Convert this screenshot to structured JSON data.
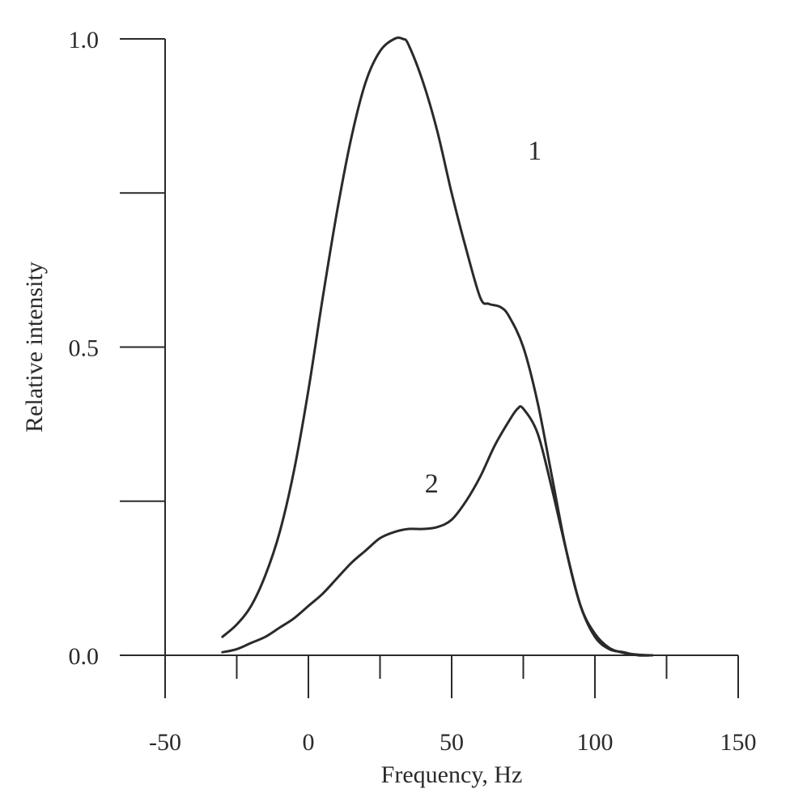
{
  "chart_data": {
    "type": "line",
    "xlabel": "Frequency, Hz",
    "ylabel": "Relative intensity",
    "xlim": [
      -50,
      150
    ],
    "ylim": [
      0.0,
      1.0
    ],
    "x_ticks": [
      -50,
      -25,
      0,
      25,
      50,
      75,
      100,
      125,
      150
    ],
    "x_tick_labels": [
      "-50",
      "0",
      "50",
      "100",
      "150"
    ],
    "y_ticks": [
      0.0,
      0.25,
      0.5,
      0.75,
      1.0
    ],
    "y_tick_labels": [
      "0.0",
      "0.5",
      "1.0"
    ],
    "grid": false,
    "series": [
      {
        "name": "1",
        "x": [
          -30,
          -25,
          -20,
          -15,
          -10,
          -5,
          0,
          5,
          10,
          15,
          20,
          25,
          30,
          33,
          35,
          40,
          45,
          50,
          55,
          60,
          63,
          67,
          70,
          75,
          80,
          85,
          90,
          95,
          100,
          105,
          110,
          115,
          120
        ],
        "y": [
          0.03,
          0.05,
          0.08,
          0.13,
          0.2,
          0.3,
          0.43,
          0.58,
          0.72,
          0.84,
          0.93,
          0.98,
          1.0,
          1.0,
          0.99,
          0.93,
          0.85,
          0.75,
          0.66,
          0.58,
          0.57,
          0.565,
          0.55,
          0.5,
          0.41,
          0.29,
          0.17,
          0.08,
          0.03,
          0.01,
          0.005,
          0.0,
          0.0
        ]
      },
      {
        "name": "2",
        "x": [
          -30,
          -25,
          -20,
          -15,
          -10,
          -5,
          0,
          5,
          10,
          15,
          20,
          25,
          30,
          35,
          40,
          45,
          50,
          55,
          60,
          65,
          70,
          73,
          75,
          80,
          85,
          90,
          95,
          100,
          105,
          110,
          115,
          120
        ],
        "y": [
          0.005,
          0.01,
          0.02,
          0.03,
          0.045,
          0.06,
          0.08,
          0.1,
          0.125,
          0.15,
          0.17,
          0.19,
          0.2,
          0.205,
          0.205,
          0.208,
          0.22,
          0.25,
          0.29,
          0.34,
          0.38,
          0.4,
          0.4,
          0.36,
          0.27,
          0.17,
          0.08,
          0.035,
          0.012,
          0.004,
          0.001,
          0.0
        ]
      }
    ],
    "annotations": [
      {
        "text": "1",
        "x": 79,
        "y": 0.82
      },
      {
        "text": "2",
        "x": 43,
        "y": 0.28
      }
    ]
  }
}
